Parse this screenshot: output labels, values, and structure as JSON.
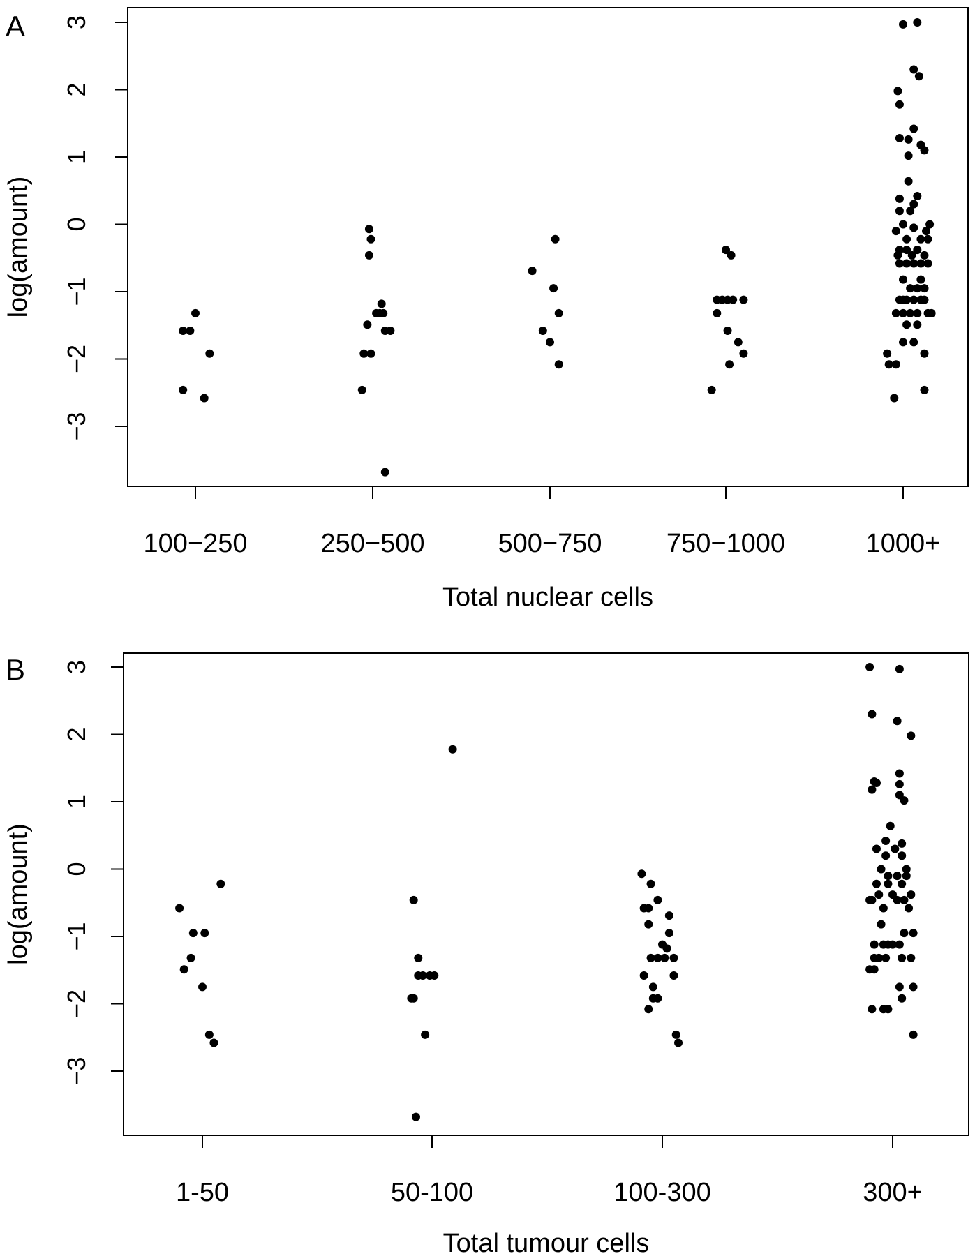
{
  "chart_data": [
    {
      "panel_label": "A",
      "type": "scatter",
      "ylabel": "log(amount)",
      "xlabel": "Total nuclear cells",
      "categories": [
        "100−250",
        "250−500",
        "500−750",
        "750−1000",
        "1000+"
      ],
      "yticks": [
        "3",
        "2",
        "1",
        "0",
        "−1",
        "−2",
        "−3"
      ],
      "ylim": [
        -3.9,
        3.2
      ],
      "grid": false,
      "points": [
        {
          "group": 0,
          "jitter": -0.07,
          "y": -1.58
        },
        {
          "group": 0,
          "jitter": -0.03,
          "y": -1.58
        },
        {
          "group": 0,
          "jitter": 0.0,
          "y": -1.32
        },
        {
          "group": 0,
          "jitter": 0.08,
          "y": -1.92
        },
        {
          "group": 0,
          "jitter": -0.07,
          "y": -2.46
        },
        {
          "group": 0,
          "jitter": 0.05,
          "y": -2.58
        },
        {
          "group": 1,
          "jitter": -0.02,
          "y": -0.07
        },
        {
          "group": 1,
          "jitter": -0.01,
          "y": -0.22
        },
        {
          "group": 1,
          "jitter": -0.02,
          "y": -0.46
        },
        {
          "group": 1,
          "jitter": 0.05,
          "y": -1.18
        },
        {
          "group": 1,
          "jitter": 0.02,
          "y": -1.32
        },
        {
          "group": 1,
          "jitter": 0.04,
          "y": -1.32
        },
        {
          "group": 1,
          "jitter": 0.06,
          "y": -1.32
        },
        {
          "group": 1,
          "jitter": -0.03,
          "y": -1.49
        },
        {
          "group": 1,
          "jitter": 0.07,
          "y": -1.58
        },
        {
          "group": 1,
          "jitter": 0.1,
          "y": -1.58
        },
        {
          "group": 1,
          "jitter": -0.05,
          "y": -1.92
        },
        {
          "group": 1,
          "jitter": -0.01,
          "y": -1.92
        },
        {
          "group": 1,
          "jitter": -0.06,
          "y": -2.46
        },
        {
          "group": 1,
          "jitter": 0.07,
          "y": -3.68
        },
        {
          "group": 2,
          "jitter": 0.03,
          "y": -0.22
        },
        {
          "group": 2,
          "jitter": -0.1,
          "y": -0.69
        },
        {
          "group": 2,
          "jitter": 0.02,
          "y": -0.95
        },
        {
          "group": 2,
          "jitter": 0.05,
          "y": -1.32
        },
        {
          "group": 2,
          "jitter": -0.04,
          "y": -1.58
        },
        {
          "group": 2,
          "jitter": 0.0,
          "y": -1.75
        },
        {
          "group": 2,
          "jitter": 0.05,
          "y": -2.08
        },
        {
          "group": 3,
          "jitter": 0.0,
          "y": -0.38
        },
        {
          "group": 3,
          "jitter": 0.03,
          "y": -0.46
        },
        {
          "group": 3,
          "jitter": -0.05,
          "y": -1.12
        },
        {
          "group": 3,
          "jitter": -0.02,
          "y": -1.12
        },
        {
          "group": 3,
          "jitter": 0.01,
          "y": -1.12
        },
        {
          "group": 3,
          "jitter": 0.04,
          "y": -1.12
        },
        {
          "group": 3,
          "jitter": 0.1,
          "y": -1.12
        },
        {
          "group": 3,
          "jitter": -0.05,
          "y": -1.32
        },
        {
          "group": 3,
          "jitter": 0.01,
          "y": -1.58
        },
        {
          "group": 3,
          "jitter": 0.07,
          "y": -1.75
        },
        {
          "group": 3,
          "jitter": 0.1,
          "y": -1.92
        },
        {
          "group": 3,
          "jitter": 0.02,
          "y": -2.08
        },
        {
          "group": 3,
          "jitter": -0.08,
          "y": -2.46
        },
        {
          "group": 4,
          "jitter": 0.08,
          "y": 3.0
        },
        {
          "group": 4,
          "jitter": 0.0,
          "y": 2.97
        },
        {
          "group": 4,
          "jitter": 0.06,
          "y": 2.3
        },
        {
          "group": 4,
          "jitter": 0.09,
          "y": 2.2
        },
        {
          "group": 4,
          "jitter": -0.03,
          "y": 1.98
        },
        {
          "group": 4,
          "jitter": -0.02,
          "y": 1.78
        },
        {
          "group": 4,
          "jitter": 0.06,
          "y": 1.42
        },
        {
          "group": 4,
          "jitter": -0.02,
          "y": 1.28
        },
        {
          "group": 4,
          "jitter": 0.03,
          "y": 1.26
        },
        {
          "group": 4,
          "jitter": 0.1,
          "y": 1.18
        },
        {
          "group": 4,
          "jitter": 0.12,
          "y": 1.1
        },
        {
          "group": 4,
          "jitter": 0.03,
          "y": 1.02
        },
        {
          "group": 4,
          "jitter": 0.03,
          "y": 0.64
        },
        {
          "group": 4,
          "jitter": 0.08,
          "y": 0.42
        },
        {
          "group": 4,
          "jitter": -0.02,
          "y": 0.38
        },
        {
          "group": 4,
          "jitter": 0.06,
          "y": 0.3
        },
        {
          "group": 4,
          "jitter": -0.02,
          "y": 0.2
        },
        {
          "group": 4,
          "jitter": 0.04,
          "y": 0.2
        },
        {
          "group": 4,
          "jitter": 0.0,
          "y": 0.0
        },
        {
          "group": 4,
          "jitter": 0.06,
          "y": -0.05
        },
        {
          "group": 4,
          "jitter": 0.15,
          "y": 0.0
        },
        {
          "group": 4,
          "jitter": 0.13,
          "y": -0.1
        },
        {
          "group": 4,
          "jitter": -0.04,
          "y": -0.1
        },
        {
          "group": 4,
          "jitter": 0.02,
          "y": -0.22
        },
        {
          "group": 4,
          "jitter": 0.1,
          "y": -0.22
        },
        {
          "group": 4,
          "jitter": 0.14,
          "y": -0.22
        },
        {
          "group": 4,
          "jitter": -0.02,
          "y": -0.38
        },
        {
          "group": 4,
          "jitter": 0.02,
          "y": -0.38
        },
        {
          "group": 4,
          "jitter": 0.08,
          "y": -0.38
        },
        {
          "group": 4,
          "jitter": -0.03,
          "y": -0.46
        },
        {
          "group": 4,
          "jitter": 0.05,
          "y": -0.46
        },
        {
          "group": 4,
          "jitter": 0.12,
          "y": -0.46
        },
        {
          "group": 4,
          "jitter": -0.02,
          "y": -0.58
        },
        {
          "group": 4,
          "jitter": 0.02,
          "y": -0.58
        },
        {
          "group": 4,
          "jitter": 0.06,
          "y": -0.58
        },
        {
          "group": 4,
          "jitter": 0.1,
          "y": -0.58
        },
        {
          "group": 4,
          "jitter": 0.14,
          "y": -0.58
        },
        {
          "group": 4,
          "jitter": 0.0,
          "y": -0.82
        },
        {
          "group": 4,
          "jitter": 0.1,
          "y": -0.82
        },
        {
          "group": 4,
          "jitter": 0.04,
          "y": -0.95
        },
        {
          "group": 4,
          "jitter": 0.08,
          "y": -0.95
        },
        {
          "group": 4,
          "jitter": 0.12,
          "y": -0.95
        },
        {
          "group": 4,
          "jitter": -0.02,
          "y": -1.12
        },
        {
          "group": 4,
          "jitter": 0.0,
          "y": -1.12
        },
        {
          "group": 4,
          "jitter": 0.02,
          "y": -1.12
        },
        {
          "group": 4,
          "jitter": 0.06,
          "y": -1.12
        },
        {
          "group": 4,
          "jitter": 0.1,
          "y": -1.12
        },
        {
          "group": 4,
          "jitter": 0.12,
          "y": -1.12
        },
        {
          "group": 4,
          "jitter": -0.04,
          "y": -1.32
        },
        {
          "group": 4,
          "jitter": 0.0,
          "y": -1.32
        },
        {
          "group": 4,
          "jitter": 0.04,
          "y": -1.32
        },
        {
          "group": 4,
          "jitter": 0.08,
          "y": -1.32
        },
        {
          "group": 4,
          "jitter": 0.14,
          "y": -1.32
        },
        {
          "group": 4,
          "jitter": 0.16,
          "y": -1.32
        },
        {
          "group": 4,
          "jitter": 0.02,
          "y": -1.49
        },
        {
          "group": 4,
          "jitter": 0.08,
          "y": -1.49
        },
        {
          "group": 4,
          "jitter": 0.0,
          "y": -1.75
        },
        {
          "group": 4,
          "jitter": 0.06,
          "y": -1.75
        },
        {
          "group": 4,
          "jitter": -0.09,
          "y": -1.92
        },
        {
          "group": 4,
          "jitter": 0.12,
          "y": -1.92
        },
        {
          "group": 4,
          "jitter": -0.08,
          "y": -2.08
        },
        {
          "group": 4,
          "jitter": -0.04,
          "y": -2.08
        },
        {
          "group": 4,
          "jitter": 0.12,
          "y": -2.46
        },
        {
          "group": 4,
          "jitter": -0.05,
          "y": -2.58
        }
      ]
    },
    {
      "panel_label": "B",
      "type": "scatter",
      "ylabel": "log(amount)",
      "xlabel": "Total tumour cells",
      "categories": [
        "1-50",
        "50-100",
        "100-300",
        "300+"
      ],
      "yticks": [
        "3",
        "2",
        "1",
        "0",
        "−1",
        "−2",
        "−3"
      ],
      "ylim": [
        -3.9,
        3.2
      ],
      "grid": false,
      "points": [
        {
          "group": 0,
          "jitter": 0.08,
          "y": -0.22
        },
        {
          "group": 0,
          "jitter": -0.1,
          "y": -0.58
        },
        {
          "group": 0,
          "jitter": -0.04,
          "y": -0.95
        },
        {
          "group": 0,
          "jitter": 0.01,
          "y": -0.95
        },
        {
          "group": 0,
          "jitter": -0.05,
          "y": -1.32
        },
        {
          "group": 0,
          "jitter": -0.08,
          "y": -1.49
        },
        {
          "group": 0,
          "jitter": 0.0,
          "y": -1.75
        },
        {
          "group": 0,
          "jitter": 0.03,
          "y": -2.46
        },
        {
          "group": 0,
          "jitter": 0.05,
          "y": -2.58
        },
        {
          "group": 1,
          "jitter": 0.09,
          "y": 1.78
        },
        {
          "group": 1,
          "jitter": -0.08,
          "y": -0.46
        },
        {
          "group": 1,
          "jitter": -0.06,
          "y": -1.32
        },
        {
          "group": 1,
          "jitter": -0.06,
          "y": -1.58
        },
        {
          "group": 1,
          "jitter": -0.04,
          "y": -1.58
        },
        {
          "group": 1,
          "jitter": -0.01,
          "y": -1.58
        },
        {
          "group": 1,
          "jitter": 0.01,
          "y": -1.58
        },
        {
          "group": 1,
          "jitter": -0.08,
          "y": -1.92
        },
        {
          "group": 1,
          "jitter": -0.09,
          "y": -1.92
        },
        {
          "group": 1,
          "jitter": -0.03,
          "y": -2.46
        },
        {
          "group": 1,
          "jitter": -0.07,
          "y": -3.68
        },
        {
          "group": 2,
          "jitter": -0.09,
          "y": -0.07
        },
        {
          "group": 2,
          "jitter": -0.05,
          "y": -0.22
        },
        {
          "group": 2,
          "jitter": -0.02,
          "y": -0.46
        },
        {
          "group": 2,
          "jitter": -0.08,
          "y": -0.58
        },
        {
          "group": 2,
          "jitter": -0.06,
          "y": -0.58
        },
        {
          "group": 2,
          "jitter": 0.03,
          "y": -0.69
        },
        {
          "group": 2,
          "jitter": -0.06,
          "y": -0.82
        },
        {
          "group": 2,
          "jitter": 0.03,
          "y": -0.95
        },
        {
          "group": 2,
          "jitter": 0.0,
          "y": -1.12
        },
        {
          "group": 2,
          "jitter": 0.02,
          "y": -1.18
        },
        {
          "group": 2,
          "jitter": -0.05,
          "y": -1.32
        },
        {
          "group": 2,
          "jitter": -0.02,
          "y": -1.32
        },
        {
          "group": 2,
          "jitter": 0.01,
          "y": -1.32
        },
        {
          "group": 2,
          "jitter": 0.05,
          "y": -1.32
        },
        {
          "group": 2,
          "jitter": -0.08,
          "y": -1.58
        },
        {
          "group": 2,
          "jitter": 0.05,
          "y": -1.58
        },
        {
          "group": 2,
          "jitter": -0.04,
          "y": -1.75
        },
        {
          "group": 2,
          "jitter": -0.04,
          "y": -1.92
        },
        {
          "group": 2,
          "jitter": -0.02,
          "y": -1.92
        },
        {
          "group": 2,
          "jitter": -0.06,
          "y": -2.08
        },
        {
          "group": 2,
          "jitter": 0.06,
          "y": -2.46
        },
        {
          "group": 2,
          "jitter": 0.07,
          "y": -2.58
        },
        {
          "group": 3,
          "jitter": -0.1,
          "y": 3.0
        },
        {
          "group": 3,
          "jitter": 0.03,
          "y": 2.97
        },
        {
          "group": 3,
          "jitter": -0.09,
          "y": 2.3
        },
        {
          "group": 3,
          "jitter": 0.02,
          "y": 2.2
        },
        {
          "group": 3,
          "jitter": 0.08,
          "y": 1.98
        },
        {
          "group": 3,
          "jitter": 0.03,
          "y": 1.42
        },
        {
          "group": 3,
          "jitter": -0.08,
          "y": 1.3
        },
        {
          "group": 3,
          "jitter": -0.07,
          "y": 1.28
        },
        {
          "group": 3,
          "jitter": 0.03,
          "y": 1.26
        },
        {
          "group": 3,
          "jitter": -0.09,
          "y": 1.18
        },
        {
          "group": 3,
          "jitter": 0.03,
          "y": 1.1
        },
        {
          "group": 3,
          "jitter": 0.05,
          "y": 1.02
        },
        {
          "group": 3,
          "jitter": -0.01,
          "y": 0.64
        },
        {
          "group": 3,
          "jitter": -0.03,
          "y": 0.42
        },
        {
          "group": 3,
          "jitter": 0.04,
          "y": 0.38
        },
        {
          "group": 3,
          "jitter": -0.07,
          "y": 0.3
        },
        {
          "group": 3,
          "jitter": 0.01,
          "y": 0.3
        },
        {
          "group": 3,
          "jitter": -0.03,
          "y": 0.2
        },
        {
          "group": 3,
          "jitter": 0.04,
          "y": 0.2
        },
        {
          "group": 3,
          "jitter": -0.05,
          "y": 0.0
        },
        {
          "group": 3,
          "jitter": 0.06,
          "y": 0.0
        },
        {
          "group": 3,
          "jitter": -0.02,
          "y": -0.1
        },
        {
          "group": 3,
          "jitter": 0.02,
          "y": -0.1
        },
        {
          "group": 3,
          "jitter": 0.06,
          "y": -0.1
        },
        {
          "group": 3,
          "jitter": -0.07,
          "y": -0.22
        },
        {
          "group": 3,
          "jitter": -0.02,
          "y": -0.22
        },
        {
          "group": 3,
          "jitter": 0.04,
          "y": -0.22
        },
        {
          "group": 3,
          "jitter": -0.06,
          "y": -0.38
        },
        {
          "group": 3,
          "jitter": 0.0,
          "y": -0.38
        },
        {
          "group": 3,
          "jitter": 0.08,
          "y": -0.38
        },
        {
          "group": 3,
          "jitter": -0.1,
          "y": -0.46
        },
        {
          "group": 3,
          "jitter": -0.09,
          "y": -0.46
        },
        {
          "group": 3,
          "jitter": 0.02,
          "y": -0.46
        },
        {
          "group": 3,
          "jitter": 0.05,
          "y": -0.46
        },
        {
          "group": 3,
          "jitter": -0.04,
          "y": -0.58
        },
        {
          "group": 3,
          "jitter": 0.07,
          "y": -0.58
        },
        {
          "group": 3,
          "jitter": -0.05,
          "y": -0.82
        },
        {
          "group": 3,
          "jitter": 0.05,
          "y": -0.95
        },
        {
          "group": 3,
          "jitter": 0.09,
          "y": -0.95
        },
        {
          "group": 3,
          "jitter": -0.08,
          "y": -1.12
        },
        {
          "group": 3,
          "jitter": -0.04,
          "y": -1.12
        },
        {
          "group": 3,
          "jitter": -0.02,
          "y": -1.12
        },
        {
          "group": 3,
          "jitter": 0.0,
          "y": -1.12
        },
        {
          "group": 3,
          "jitter": 0.03,
          "y": -1.12
        },
        {
          "group": 3,
          "jitter": -0.08,
          "y": -1.32
        },
        {
          "group": 3,
          "jitter": -0.06,
          "y": -1.32
        },
        {
          "group": 3,
          "jitter": -0.03,
          "y": -1.32
        },
        {
          "group": 3,
          "jitter": 0.04,
          "y": -1.32
        },
        {
          "group": 3,
          "jitter": 0.08,
          "y": -1.32
        },
        {
          "group": 3,
          "jitter": -0.1,
          "y": -1.49
        },
        {
          "group": 3,
          "jitter": -0.08,
          "y": -1.49
        },
        {
          "group": 3,
          "jitter": 0.03,
          "y": -1.75
        },
        {
          "group": 3,
          "jitter": 0.09,
          "y": -1.75
        },
        {
          "group": 3,
          "jitter": 0.04,
          "y": -1.92
        },
        {
          "group": 3,
          "jitter": -0.09,
          "y": -2.08
        },
        {
          "group": 3,
          "jitter": -0.04,
          "y": -2.08
        },
        {
          "group": 3,
          "jitter": -0.02,
          "y": -2.08
        },
        {
          "group": 3,
          "jitter": 0.09,
          "y": -2.46
        }
      ]
    }
  ]
}
